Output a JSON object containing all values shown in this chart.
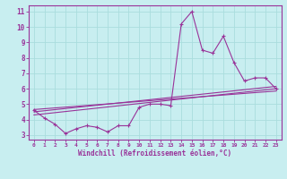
{
  "title": "",
  "xlabel": "Windchill (Refroidissement éolien,°C)",
  "ylabel": "",
  "background_color": "#c8eef0",
  "grid_color": "#aadddd",
  "line_color": "#993399",
  "xlim": [
    -0.5,
    23.5
  ],
  "ylim": [
    2.7,
    11.4
  ],
  "yticks": [
    3,
    4,
    5,
    6,
    7,
    8,
    9,
    10,
    11
  ],
  "xticks": [
    0,
    1,
    2,
    3,
    4,
    5,
    6,
    7,
    8,
    9,
    10,
    11,
    12,
    13,
    14,
    15,
    16,
    17,
    18,
    19,
    20,
    21,
    22,
    23
  ],
  "series1_x": [
    0,
    1,
    2,
    3,
    4,
    5,
    6,
    7,
    8,
    9,
    10,
    11,
    12,
    13,
    14,
    15,
    16,
    17,
    18,
    19,
    20,
    21,
    22,
    23
  ],
  "series1_y": [
    4.6,
    4.1,
    3.7,
    3.1,
    3.4,
    3.6,
    3.5,
    3.2,
    3.6,
    3.6,
    4.8,
    5.0,
    5.0,
    4.9,
    10.2,
    11.0,
    8.5,
    8.3,
    9.4,
    7.7,
    6.5,
    6.7,
    6.7,
    6.0
  ],
  "series2_x": [
    0,
    23
  ],
  "series2_y": [
    4.3,
    6.0
  ],
  "series3_x": [
    0,
    23
  ],
  "series3_y": [
    4.5,
    6.15
  ],
  "series4_x": [
    0,
    23
  ],
  "series4_y": [
    4.65,
    5.85
  ]
}
